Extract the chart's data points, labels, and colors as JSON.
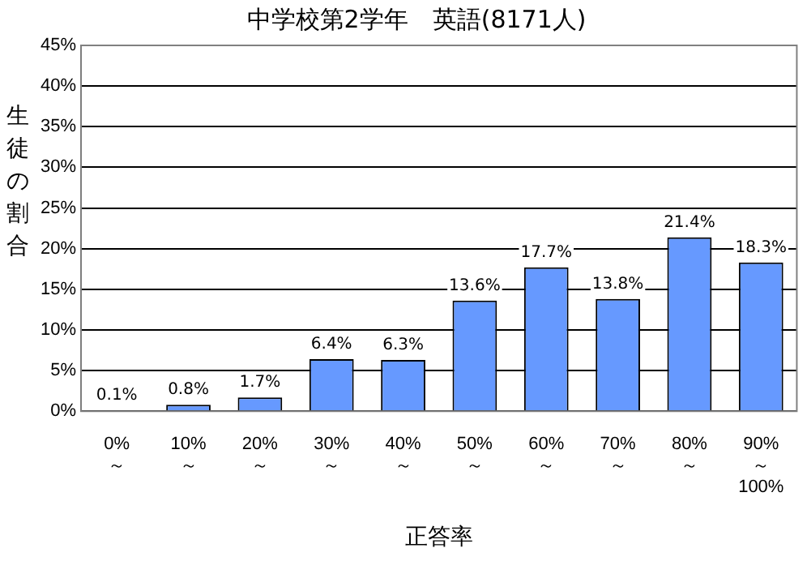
{
  "chart_data": {
    "type": "bar",
    "title": "中学校第2学年　英語(8171人)",
    "xlabel": "正答率",
    "ylabel": "生徒の割合",
    "categories": [
      "0%\n～",
      "10%\n～",
      "20%\n～",
      "30%\n～",
      "40%\n～",
      "50%\n～",
      "60%\n～",
      "70%\n～",
      "80%\n～",
      "90%\n～\n100%"
    ],
    "values": [
      0.1,
      0.8,
      1.7,
      6.4,
      6.3,
      13.6,
      17.7,
      13.8,
      21.4,
      18.3
    ],
    "value_labels": [
      "0.1%",
      "0.8%",
      "1.7%",
      "6.4%",
      "6.3%",
      "13.6%",
      "17.7%",
      "13.8%",
      "21.4%",
      "18.3%"
    ],
    "color": "#6699ff",
    "ylim": [
      0,
      45
    ],
    "yticks": [
      {
        "value": 0,
        "label": "0%"
      },
      {
        "value": 5,
        "label": "5%"
      },
      {
        "value": 10,
        "label": "10%"
      },
      {
        "value": 15,
        "label": "15%"
      },
      {
        "value": 20,
        "label": "20%"
      },
      {
        "value": 25,
        "label": "25%"
      },
      {
        "value": 30,
        "label": "30%"
      },
      {
        "value": 35,
        "label": "35%"
      },
      {
        "value": 40,
        "label": "40%"
      },
      {
        "value": 45,
        "label": "45%"
      }
    ],
    "grid": "y",
    "legend": false
  }
}
